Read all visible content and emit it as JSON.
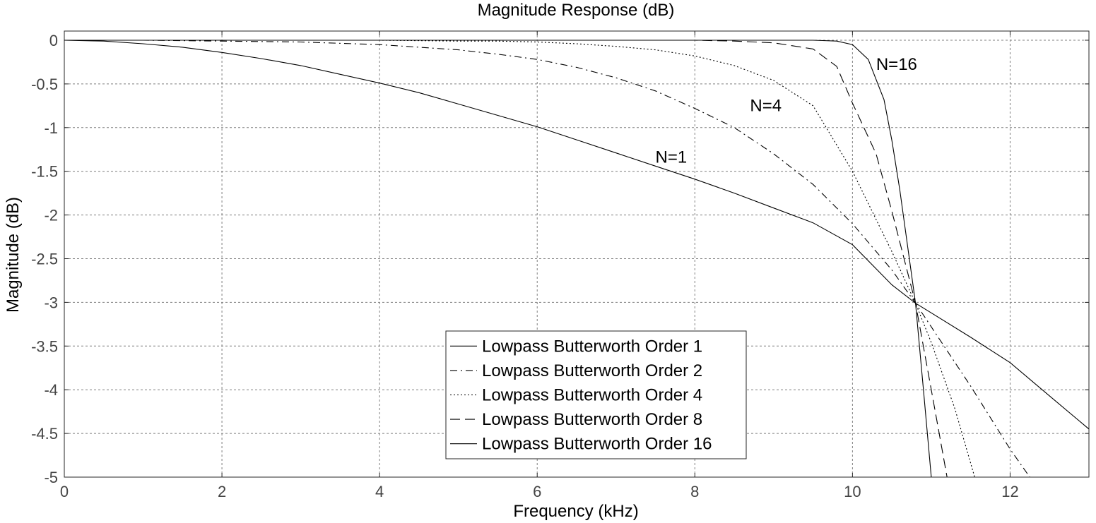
{
  "chart_data": {
    "type": "line",
    "title": "Magnitude Response (dB)",
    "xlabel": "Frequency (kHz)",
    "ylabel": "Magnitude (dB)",
    "xlim": [
      0,
      13
    ],
    "ylim": [
      -5,
      0.1
    ],
    "grid": true,
    "legend_position": "bottom-center",
    "x_ticks": [
      "0",
      "2",
      "4",
      "6",
      "8",
      "10",
      "12"
    ],
    "y_ticks": [
      "0",
      "-0.5",
      "-1",
      "-1.5",
      "-2",
      "-2.5",
      "-3",
      "-3.5",
      "-4",
      "-4.5",
      "-5"
    ],
    "series": [
      {
        "name": "Lowpass Butterworth Order 1",
        "line_style": "solid",
        "x": [
          0,
          0.5,
          1,
          1.5,
          2,
          2.5,
          3,
          3.5,
          4,
          4.5,
          5,
          5.5,
          6,
          6.5,
          7,
          7.5,
          8,
          8.5,
          9,
          9.5,
          10,
          10.5,
          10.8,
          11,
          11.5,
          12,
          12.5,
          13
        ],
        "values": [
          0,
          -0.01,
          -0.04,
          -0.08,
          -0.14,
          -0.21,
          -0.29,
          -0.39,
          -0.49,
          -0.6,
          -0.73,
          -0.86,
          -0.99,
          -1.14,
          -1.29,
          -1.44,
          -1.59,
          -1.75,
          -1.92,
          -2.09,
          -2.34,
          -2.8,
          -3.01,
          -3.12,
          -3.4,
          -3.69,
          -4.07,
          -4.45
        ]
      },
      {
        "name": "Lowpass Butterworth Order 2",
        "line_style": "dashdot",
        "x": [
          0,
          1,
          2,
          3,
          4,
          4.5,
          5,
          5.5,
          6,
          6.5,
          7,
          7.5,
          8,
          8.5,
          9,
          9.5,
          10,
          10.5,
          10.8,
          11,
          11.5,
          12,
          12.25
        ],
        "values": [
          0,
          0,
          -0.01,
          -0.02,
          -0.05,
          -0.08,
          -0.11,
          -0.16,
          -0.22,
          -0.31,
          -0.43,
          -0.58,
          -0.78,
          -1.0,
          -1.3,
          -1.65,
          -2.1,
          -2.63,
          -3.01,
          -3.28,
          -3.96,
          -4.68,
          -5.0
        ]
      },
      {
        "name": "Lowpass Butterworth Order 4",
        "line_style": "dotted",
        "x": [
          0,
          1,
          2,
          3,
          4,
          5,
          5.5,
          6,
          6.5,
          7,
          7.5,
          8,
          8.5,
          9,
          9.5,
          10,
          10.5,
          10.8,
          11,
          11.3,
          11.55
        ],
        "values": [
          0,
          0,
          0,
          0,
          0,
          -0.01,
          -0.01,
          -0.02,
          -0.04,
          -0.07,
          -0.11,
          -0.18,
          -0.29,
          -0.46,
          -0.75,
          -1.5,
          -2.42,
          -3.01,
          -3.46,
          -4.22,
          -5.0
        ]
      },
      {
        "name": "Lowpass Butterworth Order 8",
        "line_style": "dashed",
        "x": [
          0,
          2,
          4,
          6,
          7,
          8,
          8.5,
          9,
          9.5,
          9.8,
          10,
          10.3,
          10.5,
          10.8,
          11,
          11.1,
          11.2
        ],
        "values": [
          0,
          0,
          0,
          0,
          0,
          0,
          -0.01,
          -0.03,
          -0.1,
          -0.3,
          -0.72,
          -1.3,
          -1.96,
          -3.01,
          -4.0,
          -4.5,
          -5.0
        ]
      },
      {
        "name": "Lowpass Butterworth Order 16",
        "line_style": "solid",
        "x": [
          0,
          2,
          4,
          6,
          8,
          9,
          9.5,
          9.8,
          10,
          10.2,
          10.4,
          10.5,
          10.6,
          10.8,
          10.9,
          11.0
        ],
        "values": [
          0,
          0,
          0,
          0,
          0,
          0,
          0,
          -0.01,
          -0.05,
          -0.22,
          -0.68,
          -1.15,
          -1.71,
          -3.01,
          -4.0,
          -5.0
        ]
      }
    ],
    "annotations": [
      {
        "text": "N=16",
        "x": 10.3,
        "y": -0.34
      },
      {
        "text": "N=4",
        "x": 8.7,
        "y": -0.81
      },
      {
        "text": "N=1",
        "x": 7.5,
        "y": -1.4
      }
    ]
  }
}
